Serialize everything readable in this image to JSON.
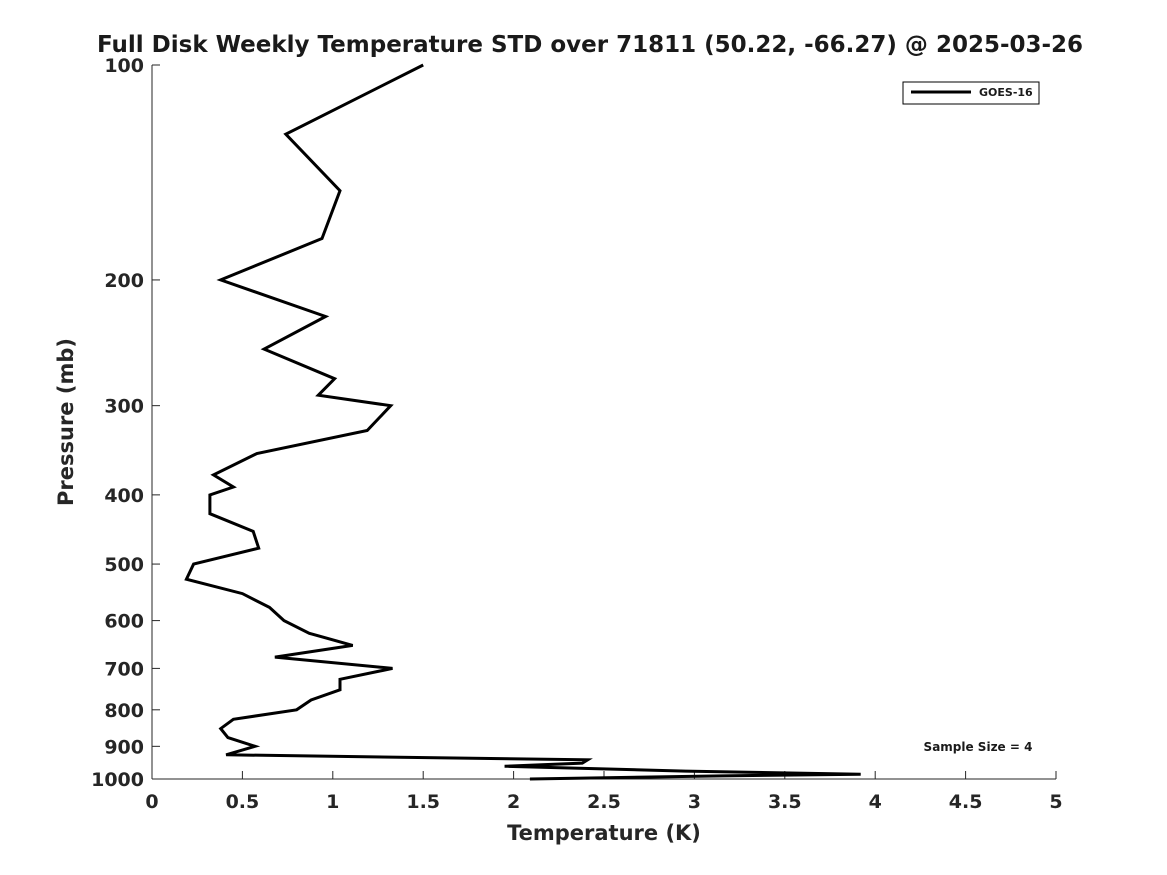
{
  "chart_data": {
    "type": "line",
    "title": "Full Disk Weekly Temperature STD over 71811 (50.22, -66.27) @ 2025-03-26",
    "xlabel": "Temperature (K)",
    "ylabel": "Pressure (mb)",
    "xlim": [
      0,
      5
    ],
    "ylim": [
      100,
      1000
    ],
    "y_scale": "log",
    "y_inverted": true,
    "x_ticks": [
      "0",
      "0.5",
      "1",
      "1.5",
      "2",
      "2.5",
      "3",
      "3.5",
      "4",
      "4.5",
      "5"
    ],
    "y_ticks": [
      "100",
      "200",
      "300",
      "400",
      "500",
      "600",
      "700",
      "800",
      "900",
      "1000"
    ],
    "grid": false,
    "legend": {
      "position": "top-right",
      "entries": [
        "GOES-16"
      ]
    },
    "annotation": "Sample Size = 4",
    "series": [
      {
        "name": "GOES-16",
        "color": "#000000",
        "points": [
          [
            1.5,
            100
          ],
          [
            0.74,
            125
          ],
          [
            1.04,
            150
          ],
          [
            0.94,
            175
          ],
          [
            0.38,
            200
          ],
          [
            0.96,
            225
          ],
          [
            0.62,
            250
          ],
          [
            1.01,
            275
          ],
          [
            0.92,
            290
          ],
          [
            1.32,
            300
          ],
          [
            1.19,
            325
          ],
          [
            0.58,
            350
          ],
          [
            0.34,
            375
          ],
          [
            0.45,
            390
          ],
          [
            0.32,
            400
          ],
          [
            0.32,
            425
          ],
          [
            0.56,
            450
          ],
          [
            0.59,
            475
          ],
          [
            0.23,
            500
          ],
          [
            0.19,
            525
          ],
          [
            0.5,
            550
          ],
          [
            0.65,
            575
          ],
          [
            0.73,
            600
          ],
          [
            0.87,
            625
          ],
          [
            1.11,
            650
          ],
          [
            0.68,
            675
          ],
          [
            1.33,
            700
          ],
          [
            1.04,
            725
          ],
          [
            1.04,
            750
          ],
          [
            0.88,
            775
          ],
          [
            0.8,
            800
          ],
          [
            0.45,
            825
          ],
          [
            0.38,
            850
          ],
          [
            0.42,
            875
          ],
          [
            0.57,
            900
          ],
          [
            0.41,
            925
          ],
          [
            2.41,
            940
          ],
          [
            2.38,
            950
          ],
          [
            1.95,
            960
          ],
          [
            2.95,
            975
          ],
          [
            3.92,
            985
          ],
          [
            3.15,
            990
          ],
          [
            2.09,
            1000
          ]
        ]
      }
    ]
  }
}
